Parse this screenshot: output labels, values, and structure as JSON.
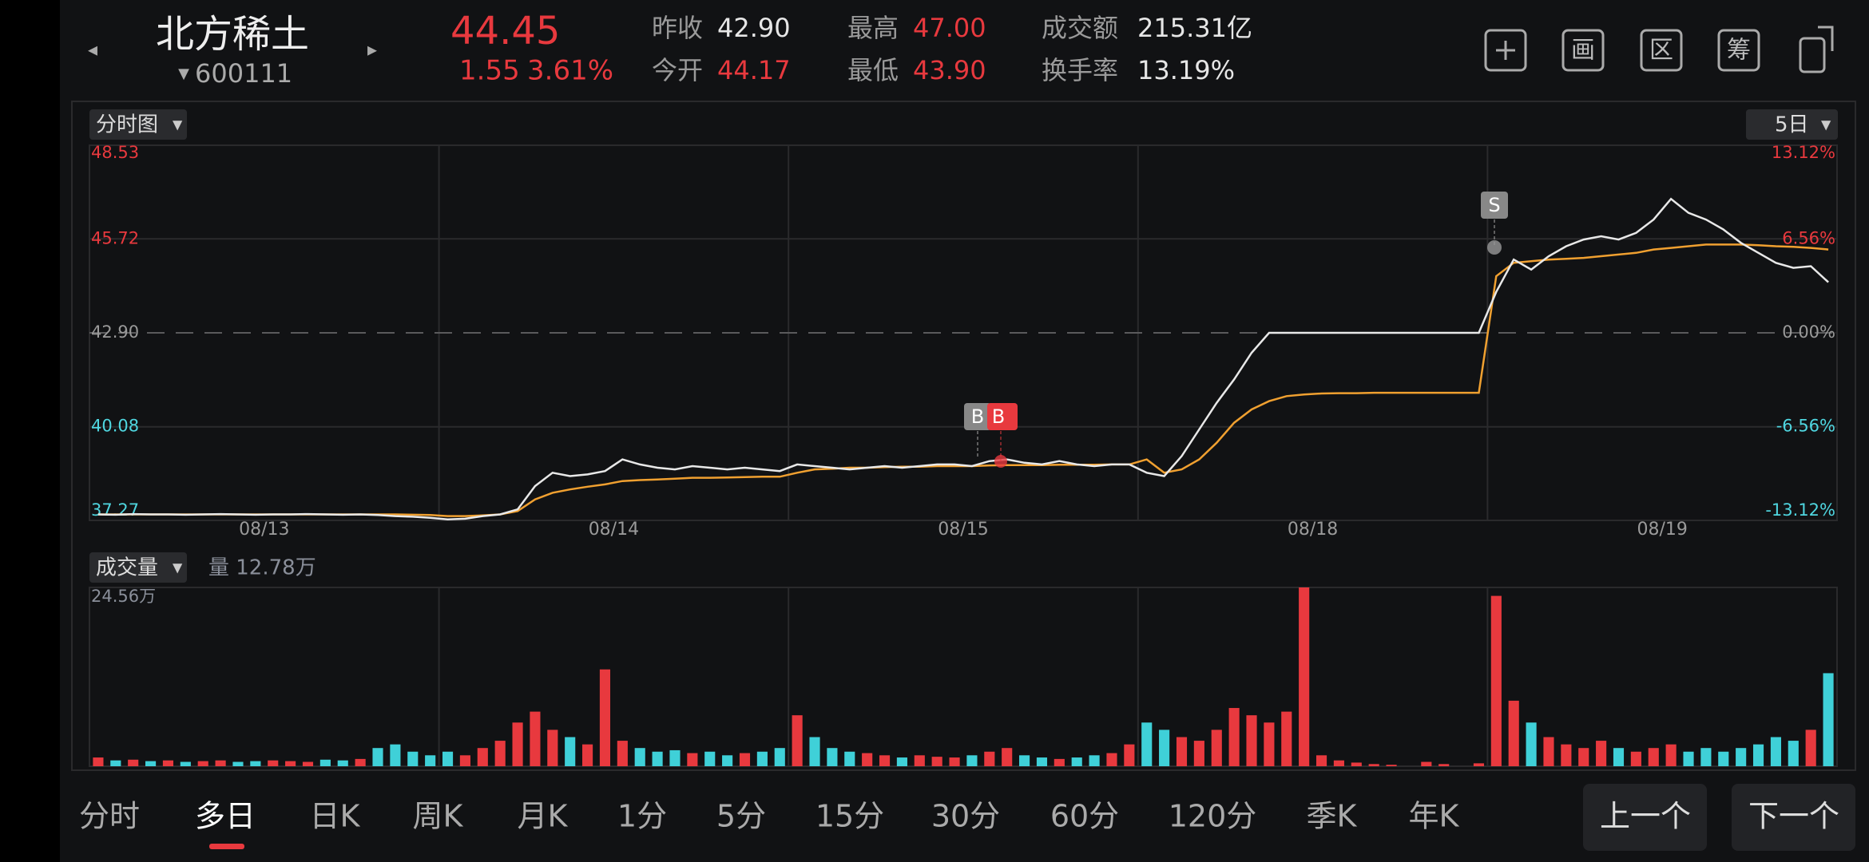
{
  "header": {
    "name": "北方稀土",
    "code": "600111",
    "price": "44.45",
    "change": "1.55",
    "change_pct": "3.61%",
    "stats": [
      {
        "label": "昨收",
        "value": "42.90"
      },
      {
        "label": "今开",
        "value": "44.17"
      },
      {
        "label": "最高",
        "value": "47.00"
      },
      {
        "label": "最低",
        "value": "43.90"
      },
      {
        "label": "成交额",
        "value": "215.31亿"
      },
      {
        "label": "换手率",
        "value": "13.19%"
      }
    ],
    "tools": [
      "画",
      "区",
      "筹"
    ]
  },
  "ui": {
    "chart_mode": "分时图",
    "period": "5日",
    "volume_mode": "成交量",
    "volume_info": "量 12.78万",
    "markers": [
      "B",
      "B",
      "S"
    ],
    "tabs": [
      "分时",
      "多日",
      "日K",
      "周K",
      "月K",
      "1分",
      "5分",
      "15分",
      "30分",
      "60分",
      "120分",
      "季K",
      "年K"
    ],
    "prev": "上一个",
    "next": "下一个"
  },
  "chart_data": [
    {
      "type": "line",
      "days": [
        "08/13",
        "08/14",
        "08/15",
        "08/18",
        "08/19"
      ],
      "ylim": [
        37.27,
        48.53
      ],
      "yticks": [
        48.53,
        45.72,
        {
          "value": 42.9,
          "label": "42.90"
        },
        40.08,
        37.27
      ],
      "y2lim": [
        -13.12,
        13.12
      ],
      "y2ticks": [
        {
          "value": 13.12,
          "label": "13.12%"
        },
        {
          "value": 6.56,
          "label": "6.56%"
        },
        {
          "value": 0,
          "label": "0.00%"
        },
        {
          "value": -6.56,
          "label": "-6.56%"
        },
        {
          "value": -13.12,
          "label": "-13.12%"
        }
      ],
      "series": [
        {
          "name": "价格",
          "color": "#e8e8e8",
          "values": [
            37.45,
            37.44,
            37.46,
            37.45,
            37.45,
            37.44,
            37.45,
            37.46,
            37.45,
            37.44,
            37.45,
            37.45,
            37.46,
            37.45,
            37.44,
            37.45,
            37.43,
            37.4,
            37.38,
            37.35,
            37.3,
            37.32,
            37.4,
            37.45,
            37.6,
            38.3,
            38.7,
            38.6,
            38.65,
            38.75,
            39.1,
            38.95,
            38.85,
            38.8,
            38.9,
            38.85,
            38.8,
            38.85,
            38.8,
            38.75,
            38.95,
            38.9,
            38.85,
            38.8,
            38.85,
            38.9,
            38.85,
            38.9,
            38.95,
            38.95,
            38.9,
            39.05,
            39.1,
            39.0,
            38.95,
            39.05,
            38.95,
            38.9,
            38.95,
            38.95,
            38.7,
            38.6,
            39.2,
            40.0,
            40.8,
            41.5,
            42.3,
            42.9,
            42.9,
            42.9,
            42.9,
            42.9,
            42.9,
            42.9,
            42.9,
            42.9,
            42.9,
            42.9,
            42.9,
            42.9,
            44.13,
            45.1,
            44.8,
            45.2,
            45.5,
            45.7,
            45.8,
            45.7,
            45.9,
            46.3,
            46.92,
            46.5,
            46.3,
            46.0,
            45.6,
            45.3,
            45.0,
            44.85,
            44.9,
            44.42
          ]
        },
        {
          "name": "均价",
          "color": "#f0a030",
          "values": [
            37.45,
            37.45,
            37.45,
            37.45,
            37.45,
            37.45,
            37.45,
            37.45,
            37.45,
            37.45,
            37.45,
            37.45,
            37.45,
            37.45,
            37.45,
            37.45,
            37.45,
            37.45,
            37.44,
            37.43,
            37.4,
            37.4,
            37.42,
            37.45,
            37.55,
            37.9,
            38.1,
            38.2,
            38.28,
            38.35,
            38.45,
            38.48,
            38.5,
            38.52,
            38.55,
            38.55,
            38.56,
            38.57,
            38.58,
            38.58,
            38.7,
            38.8,
            38.82,
            38.85,
            38.85,
            38.87,
            38.88,
            38.88,
            38.9,
            38.9,
            38.9,
            38.92,
            38.93,
            38.93,
            38.93,
            38.94,
            38.94,
            38.94,
            38.95,
            38.95,
            39.1,
            38.7,
            38.8,
            39.1,
            39.6,
            40.2,
            40.6,
            40.85,
            41.0,
            41.05,
            41.08,
            41.09,
            41.09,
            41.1,
            41.1,
            41.1,
            41.1,
            41.1,
            41.1,
            41.1,
            44.6,
            45.0,
            45.05,
            45.1,
            45.12,
            45.15,
            45.2,
            45.25,
            45.3,
            45.4,
            45.45,
            45.5,
            45.55,
            45.55,
            45.55,
            45.53,
            45.5,
            45.48,
            45.45,
            45.4
          ]
        }
      ]
    },
    {
      "type": "bar",
      "up_color": "#e8393e",
      "down_color": "#3fd0d8",
      "ylim": [
        0,
        24.56
      ],
      "yticks": [
        {
          "value": 24.56,
          "label": "24.56万"
        }
      ],
      "values": [
        1.2,
        0.8,
        0.9,
        0.7,
        0.8,
        0.6,
        0.7,
        0.8,
        0.6,
        0.7,
        0.8,
        0.7,
        0.6,
        0.9,
        0.8,
        1.0,
        2.5,
        3.0,
        2.0,
        1.5,
        2.0,
        1.5,
        2.5,
        3.5,
        6.0,
        7.5,
        5.0,
        4.0,
        3.0,
        13.3,
        3.5,
        2.5,
        2.0,
        2.2,
        1.8,
        2.0,
        1.5,
        1.8,
        2.0,
        2.5,
        7.0,
        4.0,
        2.5,
        2.0,
        1.8,
        1.5,
        1.2,
        1.5,
        1.3,
        1.2,
        1.5,
        2.0,
        2.5,
        1.5,
        1.2,
        1.0,
        1.2,
        1.5,
        1.8,
        3.0,
        6.0,
        5.0,
        4.0,
        3.5,
        5.0,
        8.0,
        7.0,
        6.0,
        7.5,
        24.56,
        1.5,
        0.8,
        0.5,
        0.3,
        0.2,
        0,
        0.6,
        0.3,
        0,
        0.4,
        23.4,
        9.0,
        6.0,
        4.0,
        3.0,
        2.5,
        3.5,
        2.5,
        2.0,
        2.5,
        3.0,
        2.0,
        2.5,
        2.0,
        2.5,
        3.0,
        4.0,
        3.5,
        5.0,
        12.78
      ]
    }
  ]
}
